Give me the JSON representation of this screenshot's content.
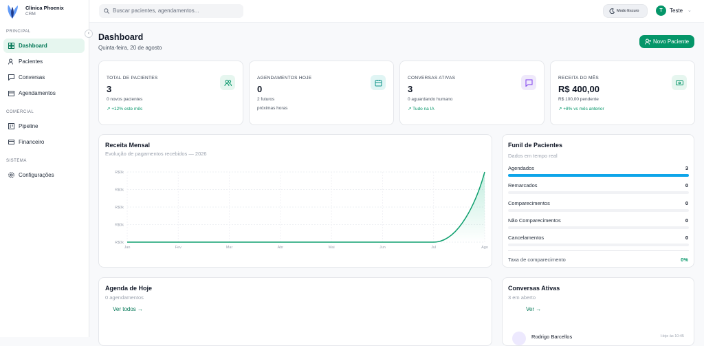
{
  "sidebar": {
    "brand": "Clínica Phoenix",
    "brand_sub": "CRM",
    "sections": [
      {
        "title": "PRINCIPAL",
        "items": [
          "Dashboard",
          "Pacientes",
          "Conversas",
          "Agendamentos"
        ]
      },
      {
        "title": "COMERCIAL",
        "items": [
          "Pipeline",
          "Financeiro"
        ]
      },
      {
        "title": "SISTEMA",
        "items": [
          "Configurações"
        ]
      }
    ]
  },
  "topbar": {
    "search_placeholder": "Buscar pacientes, agendamentos...",
    "dark_mode": "Modo Escuro",
    "user_initial": "T",
    "user_name": "Teste"
  },
  "header": {
    "title": "Dashboard",
    "date": "Quinta-feira, 20 de agosto",
    "button": "Novo Paciente"
  },
  "stats": [
    {
      "label": "TOTAL DE PACIENTES",
      "value": "3",
      "sub": "0 novos pacientes",
      "trend": "↗ +12% este mês"
    },
    {
      "label": "AGENDAMENTOS HOJE",
      "value": "0",
      "sub": "2 futuros",
      "trend": "próximas horas"
    },
    {
      "label": "CONVERSAS ATIVAS",
      "value": "3",
      "sub": "0 aguardando humano",
      "trend": "↗ Tudo na IA"
    },
    {
      "label": "RECEITA DO MÊS",
      "value": "R$ 400,00",
      "sub": "R$ 100,00 pendente",
      "trend": "↗ +8% vs mês anterior"
    }
  ],
  "revenue_chart": {
    "type": "line",
    "title": "Receita Mensal",
    "subtitle": "Evolução de pagamentos recebidos — 2026",
    "categories": [
      "Jan",
      "Fev",
      "Mar",
      "Abr",
      "Mai",
      "Jun",
      "Jul",
      "Ago"
    ],
    "values": [
      0,
      0,
      0,
      0,
      0,
      0,
      0,
      400
    ],
    "color": "#0e9f6e",
    "ylim": [
      0,
      400
    ],
    "yticks": [
      {
        "value": 0,
        "label": "R$0k"
      },
      {
        "value": 100,
        "label": "R$0k"
      },
      {
        "value": 200,
        "label": "R$0k"
      },
      {
        "value": 300,
        "label": "R$0k"
      },
      {
        "value": 400,
        "label": "R$0k"
      }
    ],
    "grid": true
  },
  "funnel": {
    "title": "Funil de Pacientes",
    "subtitle": "Dados em tempo real",
    "stages": [
      {
        "name": "Agendados",
        "value": 3
      },
      {
        "name": "Remarcados",
        "value": 0
      },
      {
        "name": "Comparecimentos",
        "value": 0
      },
      {
        "name": "Não Comparecimentos",
        "value": 0
      },
      {
        "name": "Cancelamentos",
        "value": 0
      }
    ],
    "color": "#0ea5e9",
    "rate_label": "Taxa de comparecimento",
    "rate": "0%"
  },
  "agenda": {
    "title": "Agenda de Hoje",
    "subtitle": "0 agendamentos",
    "link": "Ver todos →"
  },
  "conversations": {
    "title": "Conversas Ativas",
    "subtitle": "3 em aberto",
    "link": "Ver →",
    "items": [
      {
        "name": "Rodrigo Barcellos",
        "time": "Hoje às 10:45"
      }
    ]
  }
}
